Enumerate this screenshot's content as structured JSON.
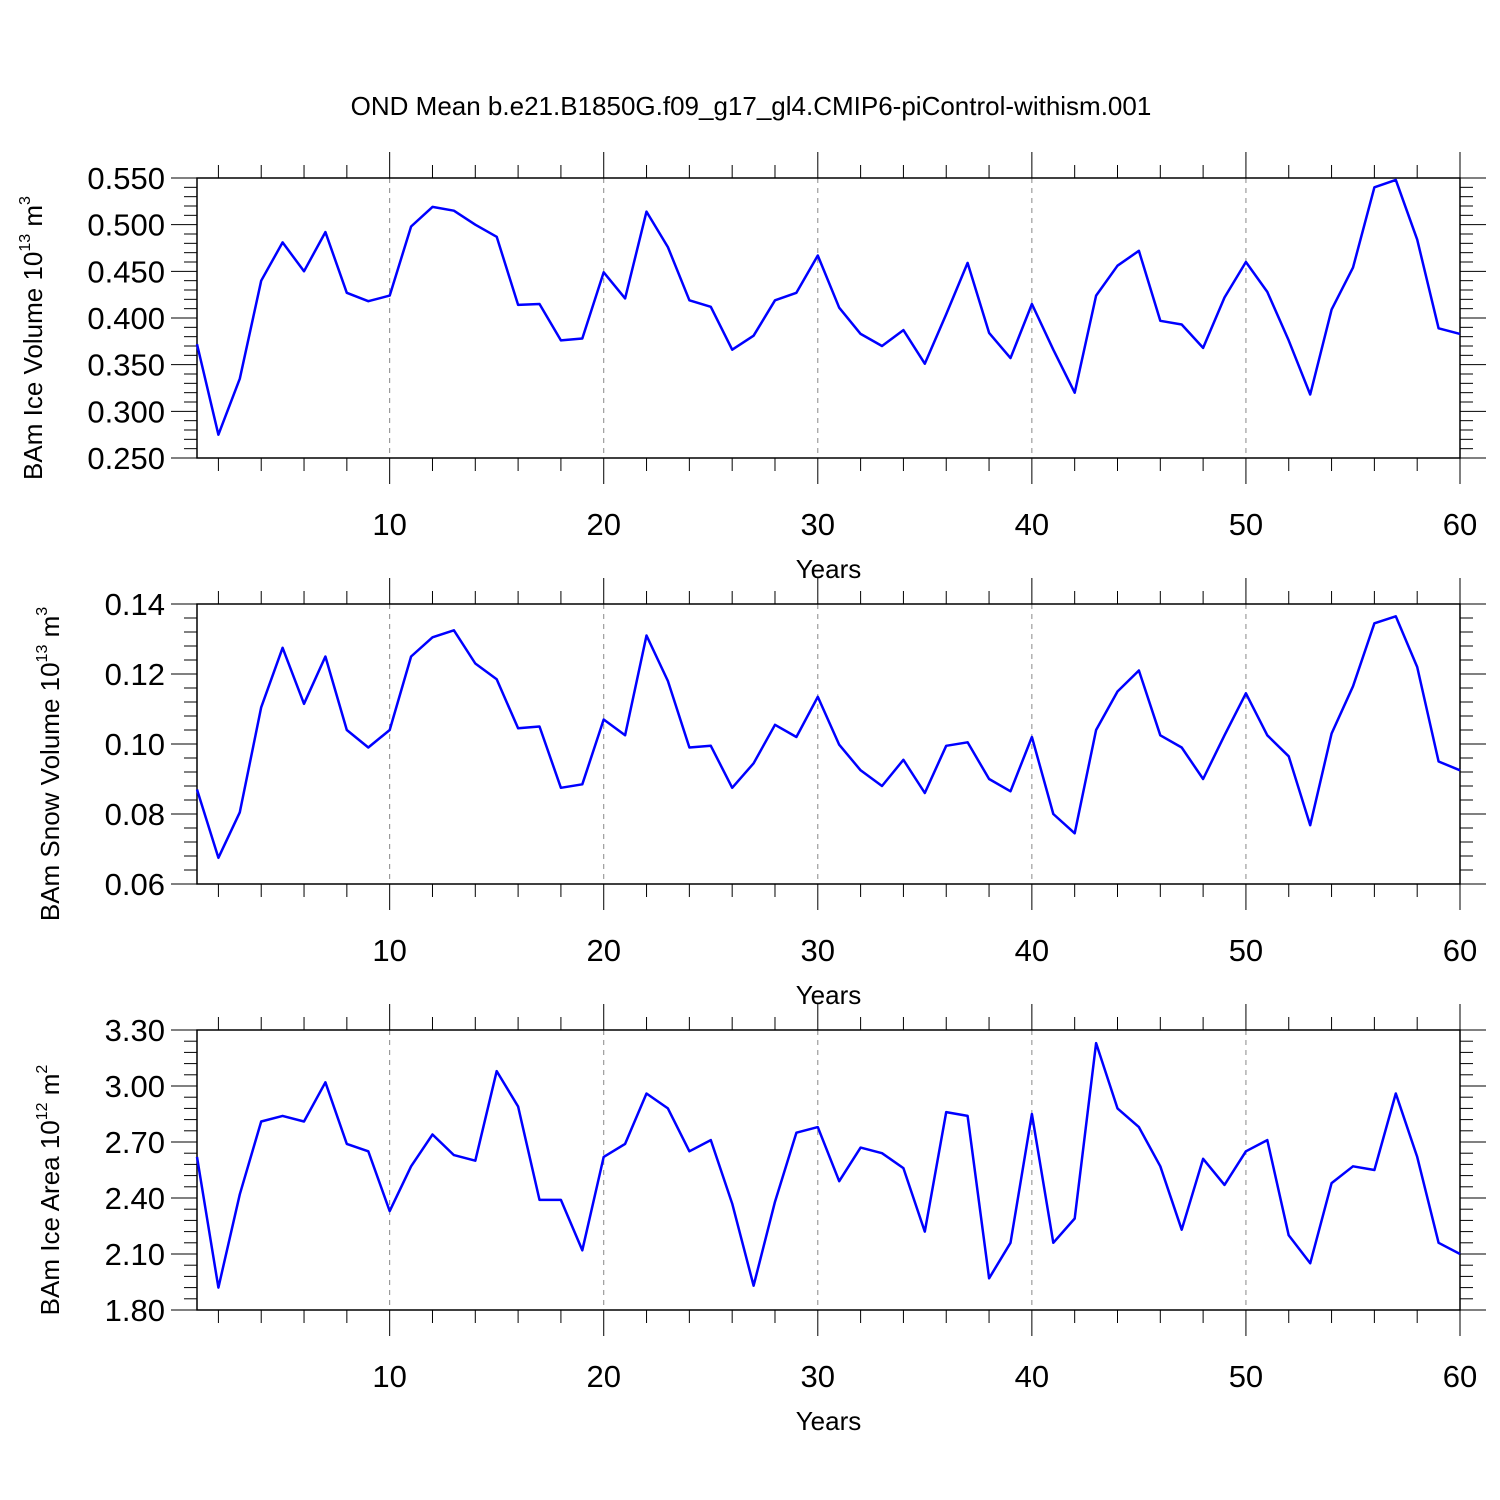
{
  "title": "OND Mean b.e21.B1850G.f09_g17_gl4.CMIP6-piControl-withism.001",
  "colors": {
    "line": "#0000ff",
    "axis": "#000000",
    "grid": "#888888"
  },
  "chart_data": [
    {
      "type": "line",
      "xlabel": "Years",
      "ylabel_main": "BAm Ice Volume 10",
      "ylabel_exp": "13",
      "ylabel_unit": " m",
      "ylabel_unit_exp": "3",
      "xlim": [
        1,
        60
      ],
      "ylim": [
        0.25,
        0.55
      ],
      "xticks": [
        10,
        20,
        30,
        40,
        50,
        60
      ],
      "yticks": [
        0.25,
        0.3,
        0.35,
        0.4,
        0.45,
        0.5,
        0.55
      ],
      "ytick_labels": [
        "0.250",
        "0.300",
        "0.350",
        "0.400",
        "0.450",
        "0.500",
        "0.550"
      ],
      "grid_x": [
        10,
        20,
        30,
        40,
        50
      ],
      "series": [
        {
          "x_start": 1,
          "x_step": 1,
          "values": [
            0.372,
            0.275,
            0.335,
            0.44,
            0.481,
            0.45,
            0.492,
            0.427,
            0.418,
            0.424,
            0.498,
            0.519,
            0.515,
            0.5,
            0.487,
            0.414,
            0.415,
            0.376,
            0.378,
            0.449,
            0.421,
            0.514,
            0.476,
            0.419,
            0.412,
            0.366,
            0.381,
            0.419,
            0.427,
            0.467,
            0.411,
            0.383,
            0.37,
            0.387,
            0.351,
            0.404,
            0.459,
            0.384,
            0.357,
            0.415,
            0.366,
            0.32,
            0.424,
            0.456,
            0.472,
            0.397,
            0.393,
            0.368,
            0.422,
            0.46,
            0.428,
            0.376,
            0.318,
            0.409,
            0.454,
            0.54,
            0.548,
            0.484,
            0.389,
            0.383
          ]
        }
      ]
    },
    {
      "type": "line",
      "xlabel": "Years",
      "ylabel_main": "BAm Snow Volume 10",
      "ylabel_exp": "13",
      "ylabel_unit": " m",
      "ylabel_unit_exp": "3",
      "xlim": [
        1,
        60
      ],
      "ylim": [
        0.06,
        0.14
      ],
      "xticks": [
        10,
        20,
        30,
        40,
        50,
        60
      ],
      "yticks": [
        0.06,
        0.08,
        0.1,
        0.12,
        0.14
      ],
      "ytick_labels": [
        "0.06",
        "0.08",
        "0.10",
        "0.12",
        "0.14"
      ],
      "grid_x": [
        10,
        20,
        30,
        40,
        50
      ],
      "series": [
        {
          "x_start": 1,
          "x_step": 1,
          "values": [
            0.087,
            0.0675,
            0.0805,
            0.1105,
            0.1275,
            0.1115,
            0.125,
            0.104,
            0.099,
            0.104,
            0.125,
            0.1305,
            0.1325,
            0.123,
            0.1185,
            0.1045,
            0.105,
            0.0875,
            0.0885,
            0.107,
            0.1025,
            0.131,
            0.118,
            0.099,
            0.0995,
            0.0875,
            0.0945,
            0.1055,
            0.102,
            0.1135,
            0.0998,
            0.0925,
            0.088,
            0.0955,
            0.086,
            0.0995,
            0.1005,
            0.09,
            0.0865,
            0.102,
            0.08,
            0.0745,
            0.104,
            0.115,
            0.121,
            0.1025,
            0.099,
            0.09,
            0.1025,
            0.1145,
            0.1025,
            0.0965,
            0.0768,
            0.103,
            0.1165,
            0.1345,
            0.1365,
            0.122,
            0.095,
            0.0925
          ]
        }
      ]
    },
    {
      "type": "line",
      "xlabel": "Years",
      "ylabel_main": "BAm Ice Area 10",
      "ylabel_exp": "12",
      "ylabel_unit": " m",
      "ylabel_unit_exp": "2",
      "xlim": [
        1,
        60
      ],
      "ylim": [
        1.8,
        3.3
      ],
      "xticks": [
        10,
        20,
        30,
        40,
        50,
        60
      ],
      "yticks": [
        1.8,
        2.1,
        2.4,
        2.7,
        3.0,
        3.3
      ],
      "ytick_labels": [
        "1.80",
        "2.10",
        "2.40",
        "2.70",
        "3.00",
        "3.30"
      ],
      "grid_x": [
        10,
        20,
        30,
        40,
        50
      ],
      "series": [
        {
          "x_start": 1,
          "x_step": 1,
          "values": [
            2.62,
            1.92,
            2.42,
            2.81,
            2.84,
            2.81,
            3.02,
            2.69,
            2.65,
            2.33,
            2.57,
            2.74,
            2.63,
            2.6,
            3.08,
            2.89,
            2.39,
            2.39,
            2.12,
            2.62,
            2.69,
            2.96,
            2.88,
            2.65,
            2.71,
            2.37,
            1.93,
            2.38,
            2.75,
            2.78,
            2.49,
            2.67,
            2.64,
            2.56,
            2.22,
            2.86,
            2.84,
            1.97,
            2.16,
            2.85,
            2.16,
            2.29,
            3.23,
            2.88,
            2.78,
            2.57,
            2.23,
            2.61,
            2.47,
            2.65,
            2.71,
            2.2,
            2.05,
            2.48,
            2.57,
            2.55,
            2.96,
            2.62,
            2.16,
            2.1
          ]
        }
      ]
    }
  ]
}
